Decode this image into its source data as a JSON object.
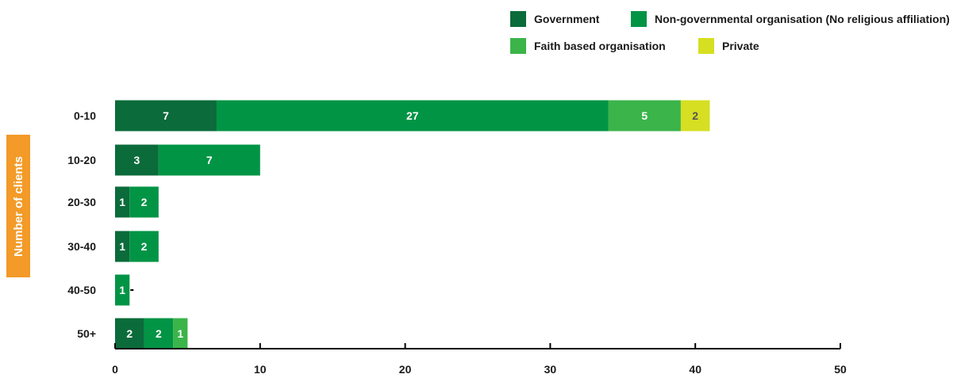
{
  "chart_data": {
    "type": "bar",
    "orientation": "horizontal",
    "stacked": true,
    "categories": [
      "0-10",
      "10-20",
      "20-30",
      "30-40",
      "40-50",
      "50+"
    ],
    "series": [
      {
        "name": "Government",
        "color": "#0b6b3a",
        "values": [
          7,
          3,
          1,
          1,
          0,
          2
        ]
      },
      {
        "name": "Non-governmental organisation (No religious affiliation)",
        "color": "#029445",
        "values": [
          27,
          7,
          2,
          2,
          1,
          2
        ]
      },
      {
        "name": "Faith based organisation",
        "color": "#3bb44a",
        "values": [
          5,
          0,
          0,
          0,
          0,
          1
        ]
      },
      {
        "name": "Private",
        "color": "#d6df22",
        "values": [
          2,
          0,
          0,
          0,
          0,
          0
        ]
      }
    ],
    "xlim": [
      0,
      50
    ],
    "xticks": [
      "0",
      "10",
      "20",
      "30",
      "40",
      "50"
    ],
    "ylabel": "Number of clients",
    "legend_position": "top-right",
    "grid": false
  }
}
